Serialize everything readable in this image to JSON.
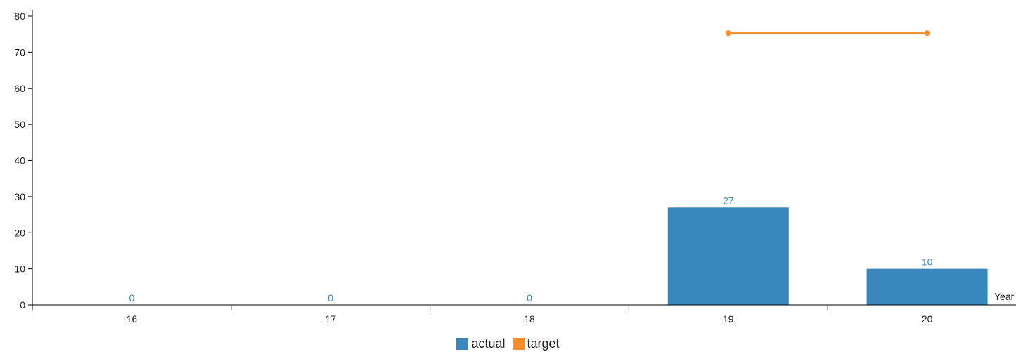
{
  "chart_data": {
    "type": "bar",
    "categories": [
      "16",
      "17",
      "18",
      "19",
      "20"
    ],
    "xlabel": "Year",
    "ylabel": "",
    "ylim": [
      0,
      80
    ],
    "yticks": [
      0,
      10,
      20,
      30,
      40,
      50,
      60,
      70,
      80
    ],
    "grid": false,
    "legend_position": "bottom-center",
    "series": [
      {
        "name": "actual",
        "type": "bar",
        "color": "#3a87bd",
        "values": [
          0,
          0,
          0,
          27,
          10
        ]
      },
      {
        "name": "target",
        "type": "line",
        "color": "#f88d2a",
        "values": [
          null,
          null,
          null,
          75.3,
          75.3
        ]
      }
    ]
  }
}
